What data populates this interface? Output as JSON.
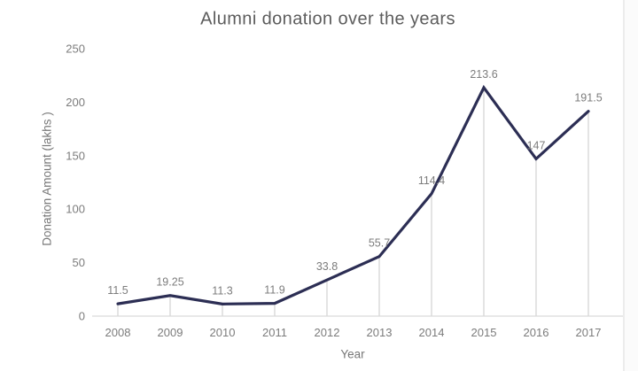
{
  "chart_data": {
    "type": "line",
    "title": "Alumni donation over the years",
    "xlabel": "Year",
    "ylabel": "Donation Amount (lakhs )",
    "categories": [
      "2008",
      "2009",
      "2010",
      "2011",
      "2012",
      "2013",
      "2014",
      "2015",
      "2016",
      "2017"
    ],
    "series": [
      {
        "name": "Donation Amount",
        "values": [
          11.5,
          19.25,
          11.3,
          11.9,
          33.8,
          55.7,
          114.4,
          213.6,
          147,
          191.5
        ],
        "labels": [
          "11.5",
          "19.25",
          "11.3",
          "11.9",
          "33.8",
          "55.7",
          "114.4",
          "213.6",
          "147",
          "191.5"
        ]
      }
    ],
    "y_ticks": [
      "0",
      "50",
      "100",
      "150",
      "200",
      "250"
    ],
    "ylim": [
      0,
      250
    ],
    "legend": "none",
    "grid": "no gridlines; thin vertical drop line from each data point to baseline",
    "colors": {
      "line": "#2c2e54",
      "drop_line": "#c8c8c8",
      "axis_line": "#d9d9d9",
      "title_text": "#5c5c5c",
      "tick_text": "#7c7c7c",
      "data_label_text": "#7c7c7c",
      "background": "#ffffff"
    }
  }
}
